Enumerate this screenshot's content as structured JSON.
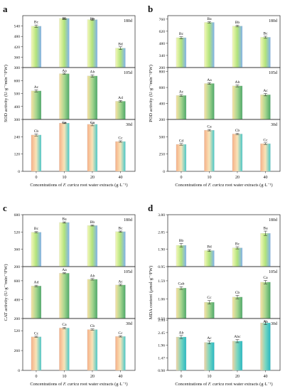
{
  "chart_data": [
    {
      "panel_label": "a",
      "type": "bar",
      "ylabel": "SOD activity (U·g⁻¹min⁻¹FW)",
      "xlabel_pre": "Concentrations of ",
      "xlabel_em": "F. carica",
      "xlabel_post": " root water extracts (g·L⁻¹)",
      "categories": [
        "0",
        "10",
        "20",
        "40"
      ],
      "subplots": [
        {
          "day": "180d",
          "ylim": [
            300,
            600
          ],
          "ticks": [
            "300",
            "360",
            "420",
            "480",
            "540"
          ],
          "values": [
            539,
            584,
            577,
            412
          ],
          "errors": [
            7,
            4,
            5,
            8
          ],
          "letters": [
            "Bc",
            "Ba",
            "Bb",
            "Bd"
          ],
          "palette": "blue"
        },
        {
          "day": "105d",
          "ylim": [
            300,
            700
          ],
          "ticks": [
            "300",
            "400",
            "500",
            "600"
          ],
          "values": [
            520,
            653,
            635,
            440
          ],
          "errors": [
            8,
            5,
            9,
            6
          ],
          "letters": [
            "Ac",
            "Aa",
            "Ab",
            "Ad"
          ],
          "palette": "green"
        },
        {
          "day": "30d",
          "ylim": [
            0,
            360
          ],
          "ticks": [
            "0",
            "120",
            "240"
          ],
          "values": [
            252,
            335,
            326,
            207
          ],
          "errors": [
            7,
            4,
            10,
            5
          ],
          "letters": [
            "Cb",
            "Ca",
            "Ca",
            "Cc"
          ],
          "palette": "orange"
        }
      ]
    },
    {
      "panel_label": "b",
      "type": "bar",
      "ylabel": "POD activity (U·g⁻¹min⁻¹FW)",
      "xlabel_pre": "Concentrations of ",
      "xlabel_em": "F. carica",
      "xlabel_post": " root water extracts (g·L⁻¹)",
      "categories": [
        "0",
        "10",
        "20",
        "40"
      ],
      "subplots": [
        {
          "day": "180d",
          "ylim": [
            200,
            800
          ],
          "ticks": [
            "200",
            "340",
            "480",
            "620",
            "760"
          ],
          "values": [
            545,
            722,
            680,
            550
          ],
          "errors": [
            12,
            8,
            10,
            12
          ],
          "letters": [
            "Bc",
            "Ba",
            "Bb",
            "Bc"
          ],
          "palette": "blue"
        },
        {
          "day": "105d",
          "ylim": [
            200,
            850
          ],
          "ticks": [
            "200",
            "400",
            "600",
            "800"
          ],
          "values": [
            500,
            650,
            620,
            510
          ],
          "errors": [
            12,
            10,
            12,
            15
          ],
          "letters": [
            "Ac",
            "Aa",
            "Ab",
            "Ac"
          ],
          "palette": "green"
        },
        {
          "day": "30d",
          "ylim": [
            0,
            750
          ],
          "ticks": [
            "0",
            "250",
            "500"
          ],
          "values": [
            390,
            595,
            540,
            400
          ],
          "errors": [
            12,
            10,
            10,
            12
          ],
          "letters": [
            "Cd",
            "Ca",
            "Cb",
            "Cc"
          ],
          "palette": "orange"
        }
      ]
    },
    {
      "panel_label": "c",
      "type": "bar",
      "ylabel": "CAT activity (U·g⁻¹min⁻¹FW)",
      "xlabel_pre": "Concentrations of ",
      "xlabel_em": "F. carica",
      "xlabel_post": " root water extracts (g·L⁻¹)",
      "categories": [
        "0",
        "10",
        "20",
        "40"
      ],
      "subplots": [
        {
          "day": "180d",
          "ylim": [
            200,
            680
          ],
          "ticks": [
            "200",
            "360",
            "520",
            "680"
          ],
          "values": [
            518,
            608,
            580,
            523
          ],
          "errors": [
            6,
            6,
            5,
            6
          ],
          "letters": [
            "Bc",
            "Ba",
            "Bb",
            "Bc"
          ],
          "palette": "blue"
        },
        {
          "day": "105d",
          "ylim": [
            200,
            750
          ],
          "ticks": [
            "200",
            "400",
            "600"
          ],
          "values": [
            545,
            680,
            615,
            555
          ],
          "errors": [
            8,
            5,
            8,
            8
          ],
          "letters": [
            "Ad",
            "Aa",
            "Ab",
            "Ac"
          ],
          "palette": "green"
        },
        {
          "day": "30d",
          "ylim": [
            0,
            680
          ],
          "ticks": [
            "0",
            "260",
            "520"
          ],
          "values": [
            440,
            555,
            535,
            445
          ],
          "errors": [
            8,
            8,
            8,
            8
          ],
          "letters": [
            "Cc",
            "Ca",
            "Cb",
            "Cc"
          ],
          "palette": "orange"
        }
      ]
    },
    {
      "panel_label": "d",
      "type": "bar",
      "ylabel": "MDA content (μmol·g⁻¹FW)",
      "xlabel_pre": "Concentrations of ",
      "xlabel_em": "F. carica",
      "xlabel_post": " root water extracts (g·L⁻¹)",
      "categories": [
        "0",
        "10",
        "20",
        "40"
      ],
      "subplots": [
        {
          "day": "180d",
          "ylim": [
            0.95,
            3.8
          ],
          "ticks": [
            "0.95",
            "1.90",
            "2.85",
            "3.80"
          ],
          "values": [
            2.12,
            1.83,
            1.98,
            2.78
          ],
          "errors": [
            0.1,
            0.05,
            0.06,
            0.12
          ],
          "letters": [
            "Bb",
            "Bd",
            "Bc",
            "Ba"
          ],
          "palette": "blue"
        },
        {
          "day": "105d",
          "ylim": [
            0.5,
            2.0
          ],
          "ticks": [
            "0.50",
            "1.06",
            "1.59"
          ],
          "values": [
            1.38,
            0.97,
            1.12,
            1.55
          ],
          "errors": [
            0.04,
            0.05,
            0.05,
            0.05
          ],
          "letters": [
            "Cab",
            "Cc",
            "Cb",
            "Ca"
          ],
          "palette": "green"
        },
        {
          "day": "30d",
          "ylim": [
            0.98,
            3.0
          ],
          "ticks": [
            "0.98",
            "1.47",
            "1.96",
            "2.45",
            "2.94"
          ],
          "values": [
            2.28,
            2.07,
            2.12,
            2.83
          ],
          "errors": [
            0.06,
            0.06,
            0.06,
            0.07
          ],
          "letters": [
            "Ab",
            "Ac",
            "Abc",
            "Aa"
          ],
          "palette": "teal"
        }
      ]
    }
  ]
}
